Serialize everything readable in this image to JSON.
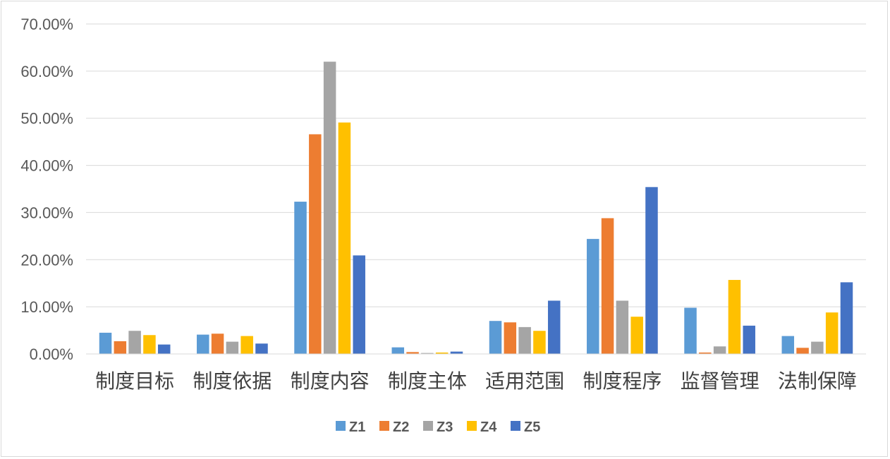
{
  "chart_data": {
    "type": "bar",
    "categories": [
      "制度目标",
      "制度依据",
      "制度内容",
      "制度主体",
      "适用范围",
      "制度程序",
      "监督管理",
      "法制保障"
    ],
    "series": [
      {
        "name": "Z1",
        "color": "#5B9BD5",
        "values": [
          0.045,
          0.041,
          0.323,
          0.014,
          0.07,
          0.244,
          0.098,
          0.038
        ]
      },
      {
        "name": "Z2",
        "color": "#ED7D31",
        "values": [
          0.027,
          0.043,
          0.466,
          0.004,
          0.067,
          0.288,
          0.003,
          0.013
        ]
      },
      {
        "name": "Z3",
        "color": "#A5A5A5",
        "values": [
          0.049,
          0.026,
          0.62,
          0.002,
          0.057,
          0.113,
          0.016,
          0.026
        ]
      },
      {
        "name": "Z4",
        "color": "#FFC000",
        "values": [
          0.04,
          0.038,
          0.491,
          0.003,
          0.049,
          0.079,
          0.157,
          0.088
        ]
      },
      {
        "name": "Z5",
        "color": "#4472C4",
        "values": [
          0.02,
          0.022,
          0.209,
          0.005,
          0.113,
          0.354,
          0.06,
          0.152
        ]
      }
    ],
    "y_ticks": [
      "0.00%",
      "10.00%",
      "20.00%",
      "30.00%",
      "40.00%",
      "50.00%",
      "60.00%",
      "70.00%"
    ],
    "ylim": [
      0,
      0.7
    ],
    "grid": true,
    "legend": "bottom"
  }
}
